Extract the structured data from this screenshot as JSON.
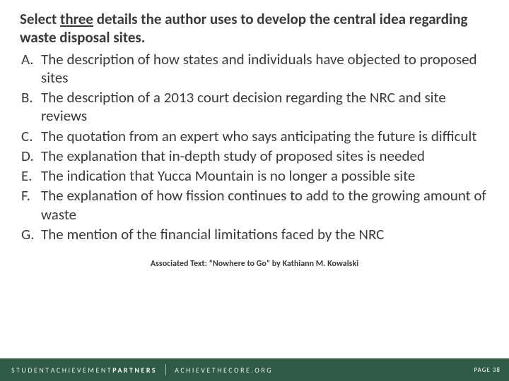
{
  "question": {
    "prefix": "Select ",
    "underlined": "three",
    "suffix": " details the author uses to develop the central idea regarding waste disposal sites."
  },
  "options": [
    {
      "letter": "A.",
      "text": "The description of how states and individuals have objected to proposed sites"
    },
    {
      "letter": "B.",
      "text": "The description of a 2013 court decision regarding the NRC and site reviews"
    },
    {
      "letter": "C.",
      "text": "The quotation from an expert who says anticipating the future is difficult"
    },
    {
      "letter": "D.",
      "text": "The explanation that in-depth study of proposed sites is needed"
    },
    {
      "letter": "E.",
      "text": "The indication that Yucca Mountain is no longer a possible site"
    },
    {
      "letter": "F.",
      "text": "The explanation of how fission continues to add to the growing amount of waste"
    },
    {
      "letter": "G.",
      "text": "The mention of the financial limitations faced by the NRC"
    }
  ],
  "associated_text": "Associated Text: “Nowhere to Go” by Kathiann M. Kowalski",
  "footer": {
    "org_light1": "STUDENT ",
    "org_light2": "ACHIEVEMENT ",
    "org_bold": "PARTNERS",
    "site": "ACHIEVETHECORE.ORG",
    "page": "PAGE 38"
  },
  "colors": {
    "text": "#3a3a3a",
    "footer_bg": "#2f5a46",
    "footer_text": "#ffffff",
    "slide_bg": "#ffffff"
  }
}
